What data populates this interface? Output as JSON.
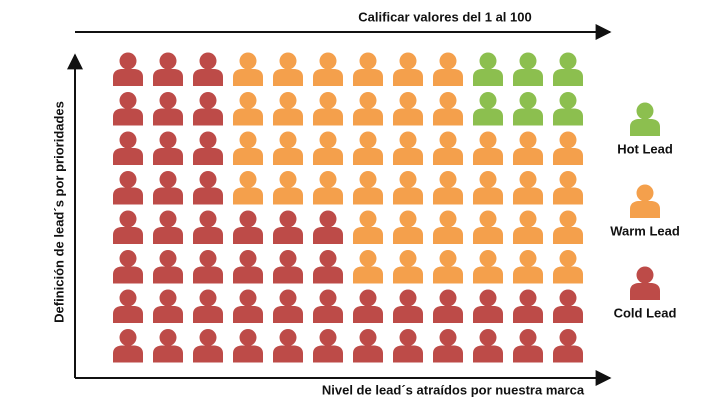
{
  "title": "Calificar valores del 1 al 100",
  "y_axis_label": "Definición de lead´s por prioridades",
  "x_axis_label": "Nivel de lead´s atraídos por nuestra marca",
  "legend": [
    {
      "label": "Hot Lead",
      "color": "#8cbf4f"
    },
    {
      "label": "Warm Lead",
      "color": "#f4a04c"
    },
    {
      "label": "Cold Lead",
      "color": "#bd4b48"
    }
  ],
  "grid": [
    [
      "#bd4b48",
      "#bd4b48",
      "#bd4b48",
      "#f4a04c",
      "#f4a04c",
      "#f4a04c",
      "#f4a04c",
      "#f4a04c",
      "#f4a04c",
      "#8cbf4f",
      "#8cbf4f",
      "#8cbf4f"
    ],
    [
      "#bd4b48",
      "#bd4b48",
      "#bd4b48",
      "#f4a04c",
      "#f4a04c",
      "#f4a04c",
      "#f4a04c",
      "#f4a04c",
      "#f4a04c",
      "#8cbf4f",
      "#8cbf4f",
      "#8cbf4f"
    ],
    [
      "#bd4b48",
      "#bd4b48",
      "#bd4b48",
      "#f4a04c",
      "#f4a04c",
      "#f4a04c",
      "#f4a04c",
      "#f4a04c",
      "#f4a04c",
      "#f4a04c",
      "#f4a04c",
      "#f4a04c"
    ],
    [
      "#bd4b48",
      "#bd4b48",
      "#bd4b48",
      "#f4a04c",
      "#f4a04c",
      "#f4a04c",
      "#f4a04c",
      "#f4a04c",
      "#f4a04c",
      "#f4a04c",
      "#f4a04c",
      "#f4a04c"
    ],
    [
      "#bd4b48",
      "#bd4b48",
      "#bd4b48",
      "#bd4b48",
      "#bd4b48",
      "#bd4b48",
      "#f4a04c",
      "#f4a04c",
      "#f4a04c",
      "#f4a04c",
      "#f4a04c",
      "#f4a04c"
    ],
    [
      "#bd4b48",
      "#bd4b48",
      "#bd4b48",
      "#bd4b48",
      "#bd4b48",
      "#bd4b48",
      "#f4a04c",
      "#f4a04c",
      "#f4a04c",
      "#f4a04c",
      "#f4a04c",
      "#f4a04c"
    ],
    [
      "#bd4b48",
      "#bd4b48",
      "#bd4b48",
      "#bd4b48",
      "#bd4b48",
      "#bd4b48",
      "#bd4b48",
      "#bd4b48",
      "#bd4b48",
      "#bd4b48",
      "#bd4b48",
      "#bd4b48"
    ],
    [
      "#bd4b48",
      "#bd4b48",
      "#bd4b48",
      "#bd4b48",
      "#bd4b48",
      "#bd4b48",
      "#bd4b48",
      "#bd4b48",
      "#bd4b48",
      "#bd4b48",
      "#bd4b48",
      "#bd4b48"
    ]
  ]
}
